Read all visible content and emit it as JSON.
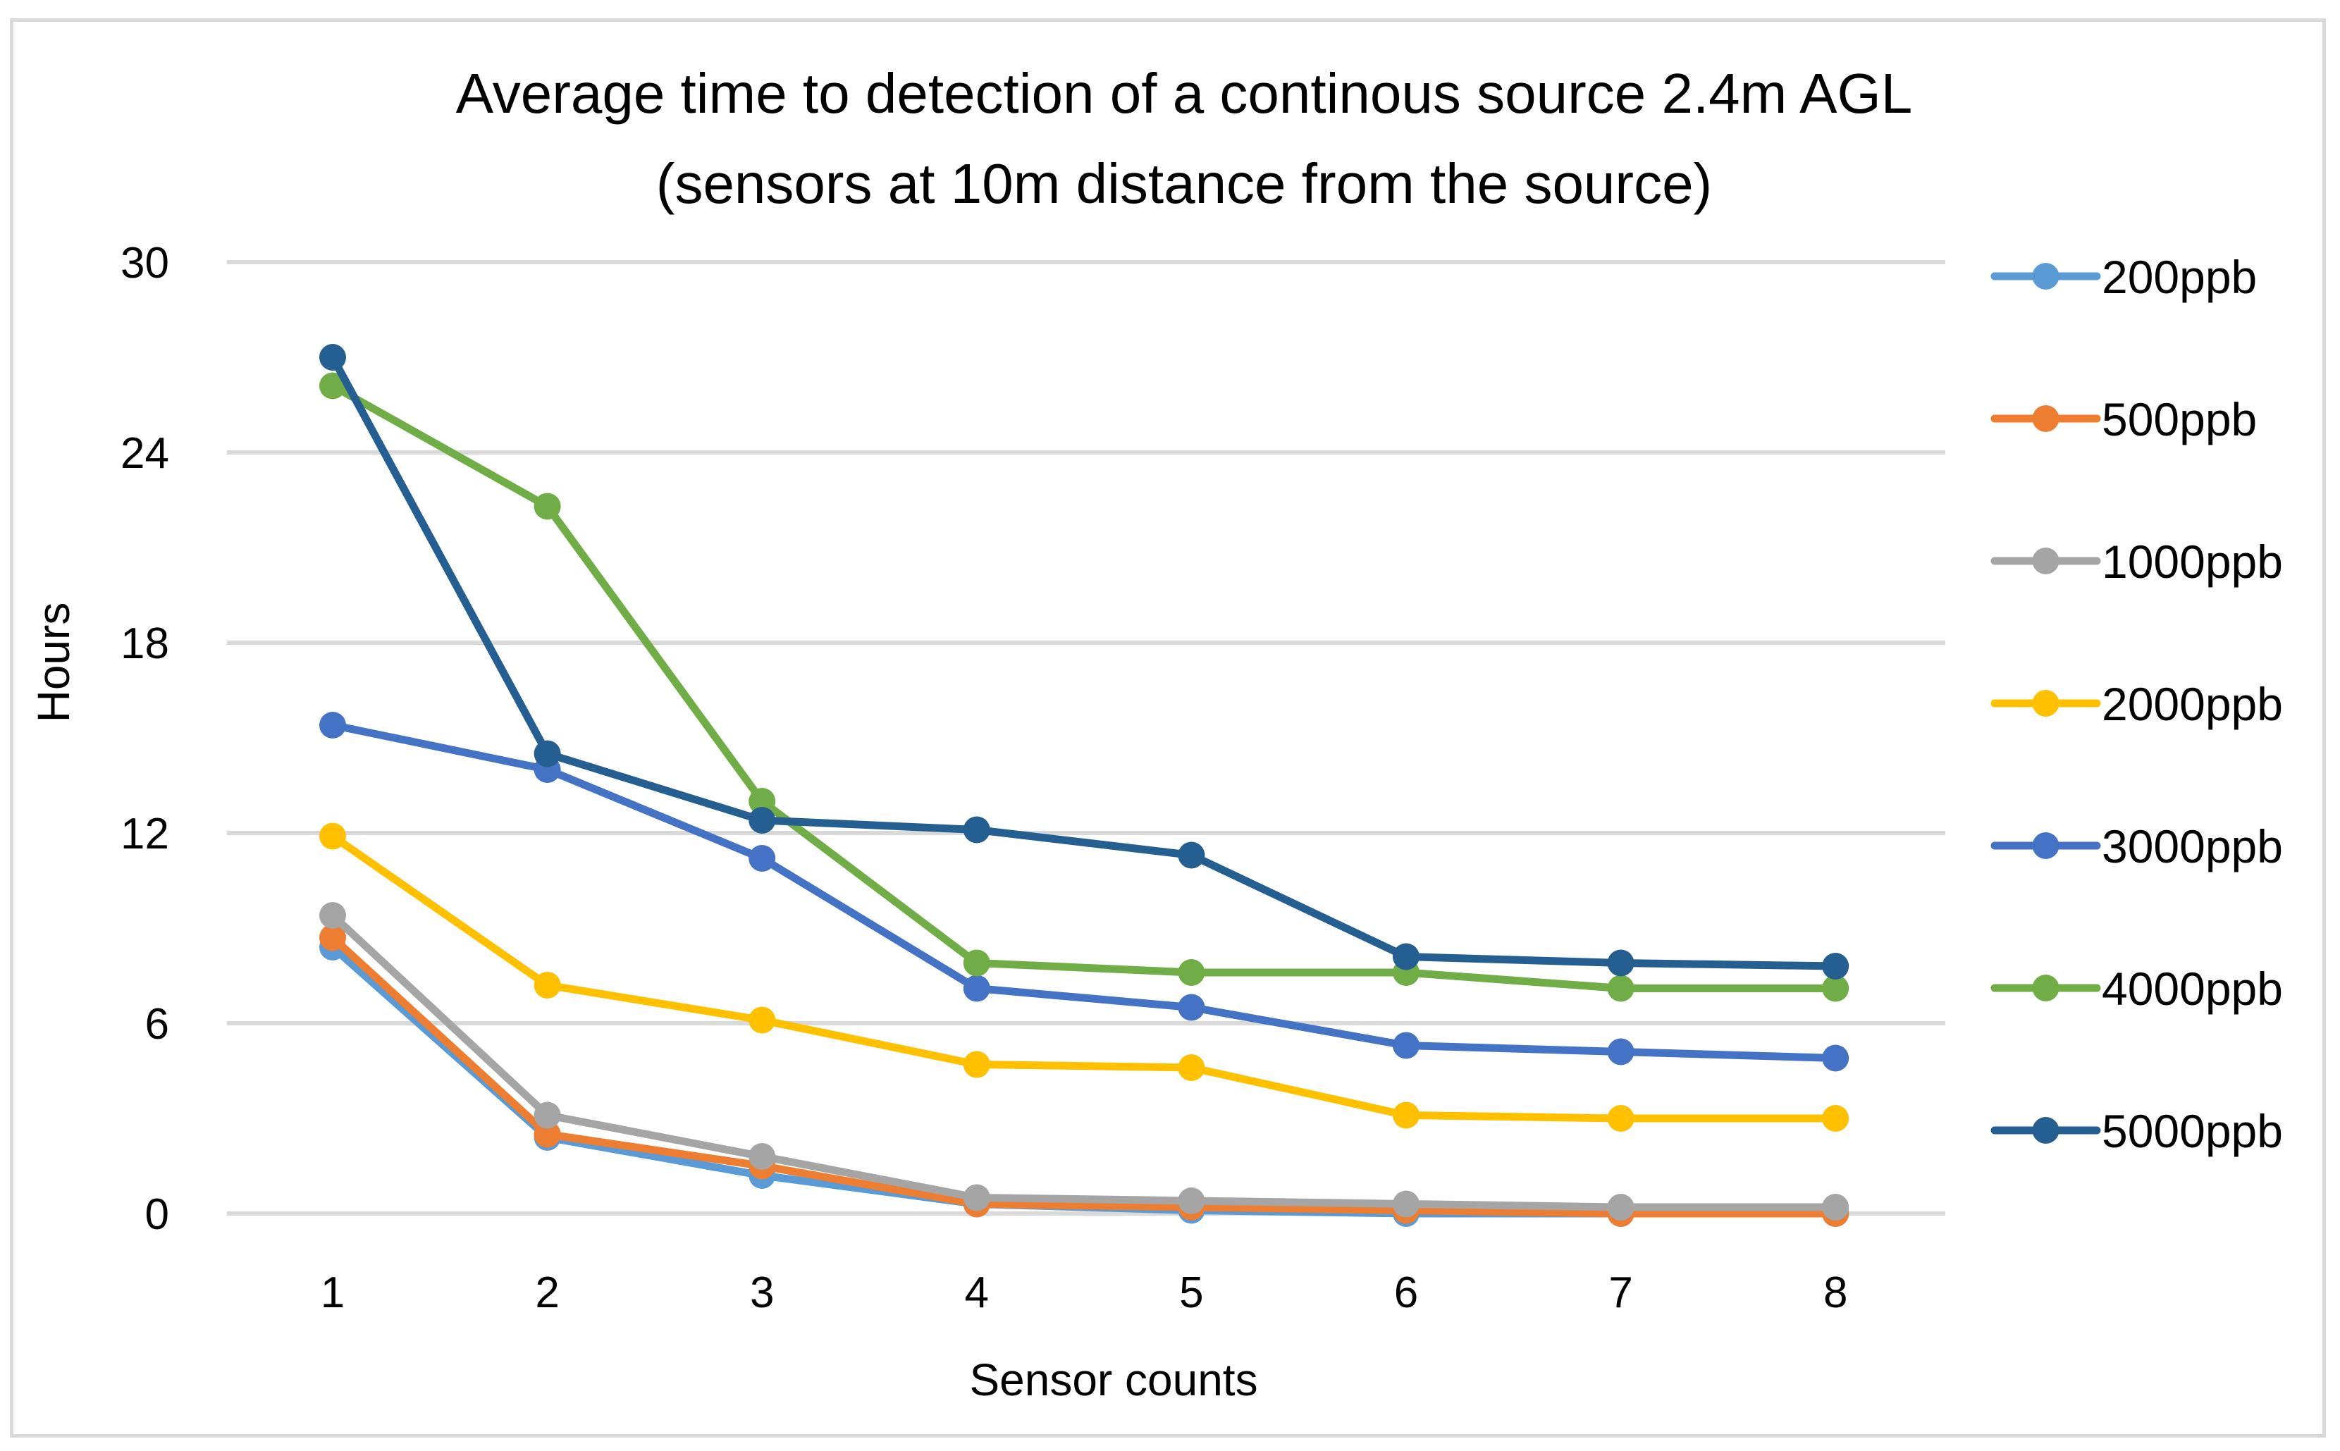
{
  "chart_data": {
    "type": "line",
    "title_lines": [
      "Average time to detection of a continous source 2.4m AGL",
      "(sensors at 10m distance from the source)"
    ],
    "xlabel": "Sensor counts",
    "ylabel": "Hours",
    "categories": [
      "1",
      "2",
      "3",
      "4",
      "5",
      "6",
      "7",
      "8"
    ],
    "y_ticks": [
      "0",
      "6",
      "12",
      "18",
      "24",
      "30"
    ],
    "ylim": [
      0,
      30
    ],
    "grid": true,
    "legend_position": "right",
    "series": [
      {
        "name": "200ppb",
        "color": "#5b9bd5",
        "values": [
          8.4,
          2.4,
          1.2,
          0.3,
          0.1,
          0.0,
          0.0,
          0.0
        ]
      },
      {
        "name": "500ppb",
        "color": "#ed7d31",
        "values": [
          8.7,
          2.5,
          1.5,
          0.3,
          0.2,
          0.1,
          0.0,
          0.0
        ]
      },
      {
        "name": "1000ppb",
        "color": "#a5a5a5",
        "values": [
          9.4,
          3.1,
          1.8,
          0.5,
          0.4,
          0.3,
          0.2,
          0.2
        ]
      },
      {
        "name": "2000ppb",
        "color": "#ffc000",
        "values": [
          11.9,
          7.2,
          6.1,
          4.7,
          4.6,
          3.1,
          3.0,
          3.0
        ]
      },
      {
        "name": "3000ppb",
        "color": "#4472c4",
        "values": [
          15.4,
          14.0,
          11.2,
          7.1,
          6.5,
          5.3,
          5.1,
          4.9
        ]
      },
      {
        "name": "4000ppb",
        "color": "#70ad47",
        "values": [
          26.1,
          22.3,
          13.0,
          7.9,
          7.6,
          7.6,
          7.1,
          7.1
        ]
      },
      {
        "name": "5000ppb",
        "color": "#255e91",
        "values": [
          27.0,
          14.5,
          12.4,
          12.1,
          11.3,
          8.1,
          7.9,
          7.8
        ]
      }
    ]
  }
}
